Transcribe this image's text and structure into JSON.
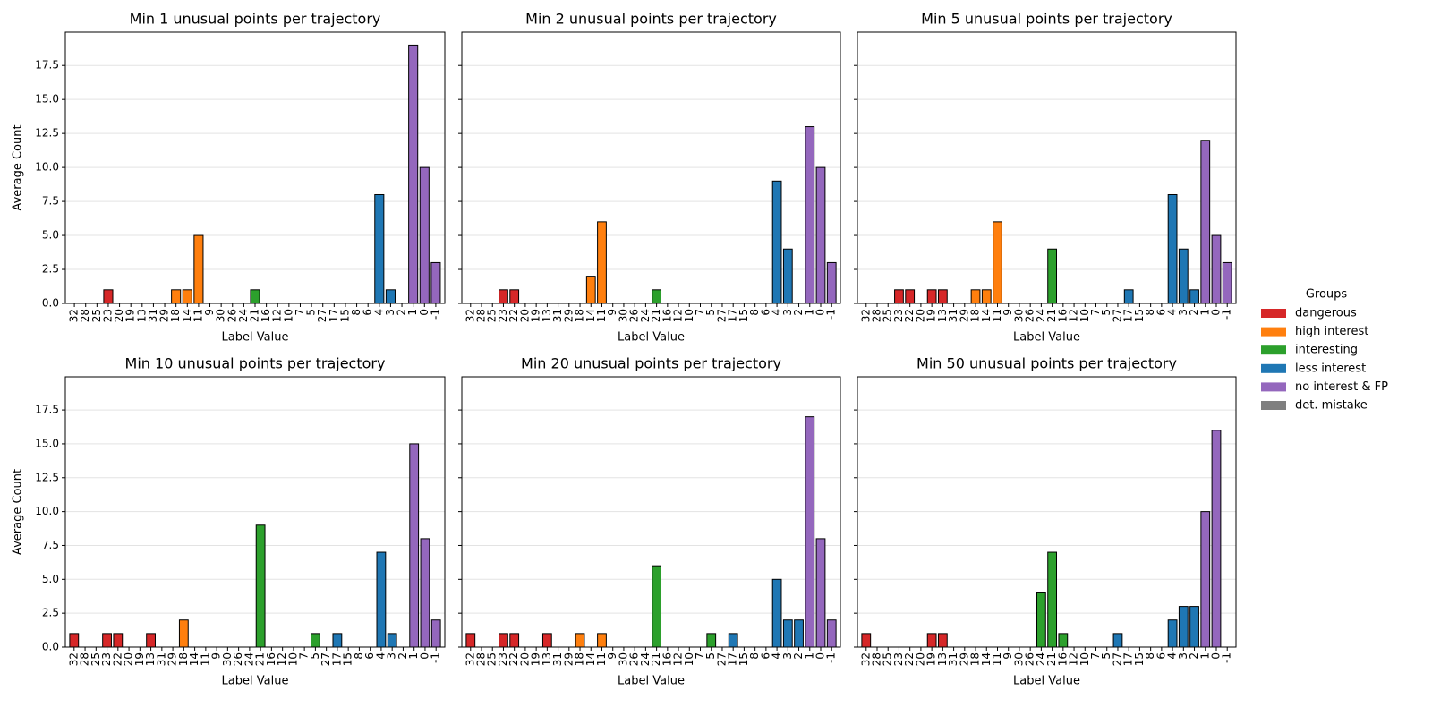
{
  "chart_data": [
    {
      "type": "bar",
      "title": "Min 1 unusual points per trajectory",
      "xlabel": "Label Value",
      "ylabel": "Average Count",
      "categories": [
        "32",
        "28",
        "25",
        "23",
        "20",
        "19",
        "13",
        "31",
        "29",
        "18",
        "14",
        "11",
        "9",
        "30",
        "26",
        "24",
        "21",
        "16",
        "12",
        "10",
        "7",
        "5",
        "27",
        "17",
        "15",
        "8",
        "6",
        "4",
        "3",
        "2",
        "1",
        "0",
        "-1"
      ],
      "values": [
        0,
        0,
        0,
        1,
        0,
        0,
        0,
        0,
        0,
        1,
        1,
        5,
        0,
        0,
        0,
        0,
        1,
        0,
        0,
        0,
        0,
        0,
        0,
        0,
        0,
        0,
        0,
        8,
        1,
        0,
        19,
        10,
        3
      ],
      "ylim": [
        0,
        19.95
      ],
      "yticks": [
        {
          "value": 0,
          "label": "0.0"
        },
        {
          "value": 2.5,
          "label": "2.5"
        },
        {
          "value": 5,
          "label": "5.0"
        },
        {
          "value": 7.5,
          "label": "7.5"
        },
        {
          "value": 10,
          "label": "10.0"
        },
        {
          "value": 12.5,
          "label": "12.5"
        },
        {
          "value": 15,
          "label": "15.0"
        },
        {
          "value": 17.5,
          "label": "17.5"
        }
      ],
      "grid": true
    },
    {
      "type": "bar",
      "title": "Min 2 unusual points per trajectory",
      "xlabel": "Label Value",
      "categories": [
        "32",
        "28",
        "25",
        "23",
        "22",
        "20",
        "19",
        "13",
        "31",
        "29",
        "18",
        "14",
        "11",
        "9",
        "30",
        "26",
        "24",
        "21",
        "16",
        "12",
        "10",
        "7",
        "5",
        "27",
        "17",
        "15",
        "8",
        "6",
        "4",
        "3",
        "2",
        "1",
        "0",
        "-1"
      ],
      "values": [
        0,
        0,
        0,
        1,
        1,
        0,
        0,
        0,
        0,
        0,
        0,
        2,
        6,
        0,
        0,
        0,
        0,
        1,
        0,
        0,
        0,
        0,
        0,
        0,
        0,
        0,
        0,
        0,
        9,
        4,
        0,
        13,
        10,
        3
      ],
      "ylim": [
        0,
        19.95
      ],
      "yticks": [
        0,
        2.5,
        5,
        7.5,
        10,
        12.5,
        15,
        17.5
      ],
      "grid": true
    },
    {
      "type": "bar",
      "title": "Min 5 unusual points per trajectory",
      "xlabel": "Label Value",
      "categories": [
        "32",
        "28",
        "25",
        "23",
        "22",
        "20",
        "19",
        "13",
        "31",
        "29",
        "18",
        "14",
        "11",
        "9",
        "30",
        "26",
        "24",
        "21",
        "16",
        "12",
        "10",
        "7",
        "5",
        "27",
        "17",
        "15",
        "8",
        "6",
        "4",
        "3",
        "2",
        "1",
        "0",
        "-1"
      ],
      "values": [
        0,
        0,
        0,
        1,
        1,
        0,
        1,
        1,
        0,
        0,
        1,
        1,
        6,
        0,
        0,
        0,
        0,
        4,
        0,
        0,
        0,
        0,
        0,
        0,
        1,
        0,
        0,
        0,
        8,
        4,
        1,
        12,
        5,
        3
      ],
      "ylim": [
        0,
        19.95
      ],
      "yticks": [
        0,
        2.5,
        5,
        7.5,
        10,
        12.5,
        15,
        17.5
      ],
      "grid": true
    },
    {
      "type": "bar",
      "title": "Min 10 unusual points per trajectory",
      "xlabel": "Label Value",
      "ylabel": "Average Count",
      "categories": [
        "32",
        "28",
        "25",
        "23",
        "22",
        "20",
        "19",
        "13",
        "31",
        "29",
        "18",
        "14",
        "11",
        "9",
        "30",
        "26",
        "24",
        "21",
        "16",
        "12",
        "10",
        "7",
        "5",
        "27",
        "17",
        "15",
        "8",
        "6",
        "4",
        "3",
        "2",
        "1",
        "0",
        "-1"
      ],
      "values": [
        1,
        0,
        0,
        1,
        1,
        0,
        0,
        1,
        0,
        0,
        2,
        0,
        0,
        0,
        0,
        0,
        0,
        9,
        0,
        0,
        0,
        0,
        1,
        0,
        1,
        0,
        0,
        0,
        7,
        1,
        0,
        15,
        8,
        2
      ],
      "ylim": [
        0,
        19.95
      ],
      "yticks": [
        {
          "value": 0,
          "label": "0.0"
        },
        {
          "value": 2.5,
          "label": "2.5"
        },
        {
          "value": 5,
          "label": "5.0"
        },
        {
          "value": 7.5,
          "label": "7.5"
        },
        {
          "value": 10,
          "label": "10.0"
        },
        {
          "value": 12.5,
          "label": "12.5"
        },
        {
          "value": 15,
          "label": "15.0"
        },
        {
          "value": 17.5,
          "label": "17.5"
        }
      ],
      "grid": true
    },
    {
      "type": "bar",
      "title": "Min 20 unusual points per trajectory",
      "xlabel": "Label Value",
      "categories": [
        "32",
        "28",
        "25",
        "23",
        "22",
        "20",
        "19",
        "13",
        "31",
        "29",
        "18",
        "14",
        "11",
        "9",
        "30",
        "26",
        "24",
        "21",
        "16",
        "12",
        "10",
        "7",
        "5",
        "27",
        "17",
        "15",
        "8",
        "6",
        "4",
        "3",
        "2",
        "1",
        "0",
        "-1"
      ],
      "values": [
        1,
        0,
        0,
        1,
        1,
        0,
        0,
        1,
        0,
        0,
        1,
        0,
        1,
        0,
        0,
        0,
        0,
        6,
        0,
        0,
        0,
        0,
        1,
        0,
        1,
        0,
        0,
        0,
        5,
        2,
        2,
        17,
        8,
        2
      ],
      "ylim": [
        0,
        19.95
      ],
      "yticks": [
        0,
        2.5,
        5,
        7.5,
        10,
        12.5,
        15,
        17.5
      ],
      "grid": true
    },
    {
      "type": "bar",
      "title": "Min 50 unusual points per trajectory",
      "xlabel": "Label Value",
      "categories": [
        "32",
        "28",
        "25",
        "23",
        "22",
        "20",
        "19",
        "13",
        "31",
        "29",
        "18",
        "14",
        "11",
        "9",
        "30",
        "26",
        "24",
        "21",
        "16",
        "12",
        "10",
        "7",
        "5",
        "27",
        "17",
        "15",
        "8",
        "6",
        "4",
        "3",
        "2",
        "1",
        "0",
        "-1"
      ],
      "values": [
        1,
        0,
        0,
        0,
        0,
        0,
        1,
        1,
        0,
        0,
        0,
        0,
        0,
        0,
        0,
        0,
        4,
        7,
        1,
        0,
        0,
        0,
        0,
        1,
        0,
        0,
        0,
        0,
        2,
        3,
        3,
        10,
        16,
        0
      ],
      "ylim": [
        0,
        19.95
      ],
      "yticks": [
        0,
        2.5,
        5,
        7.5,
        10,
        12.5,
        15,
        17.5
      ],
      "grid": true
    }
  ],
  "legend": {
    "title": "Groups",
    "items": [
      {
        "name": "dangerous",
        "color": "#d62728",
        "members": [
          "32",
          "28",
          "25",
          "23",
          "22",
          "20",
          "19",
          "13",
          "31",
          "29"
        ]
      },
      {
        "name": "high interest",
        "color": "#ff7f0e",
        "members": [
          "18",
          "14",
          "11",
          "9"
        ]
      },
      {
        "name": "interesting",
        "color": "#2ca02c",
        "members": [
          "30",
          "26",
          "24",
          "21",
          "16",
          "12",
          "10",
          "7",
          "5"
        ]
      },
      {
        "name": "less interest",
        "color": "#1f77b4",
        "members": [
          "27",
          "17",
          "15",
          "8",
          "6",
          "4",
          "3",
          "2"
        ]
      },
      {
        "name": "no interest & FP",
        "color": "#9467bd",
        "members": [
          "1",
          "0",
          "-1"
        ]
      },
      {
        "name": "det. mistake",
        "color": "#7f7f7f",
        "members": []
      }
    ]
  }
}
